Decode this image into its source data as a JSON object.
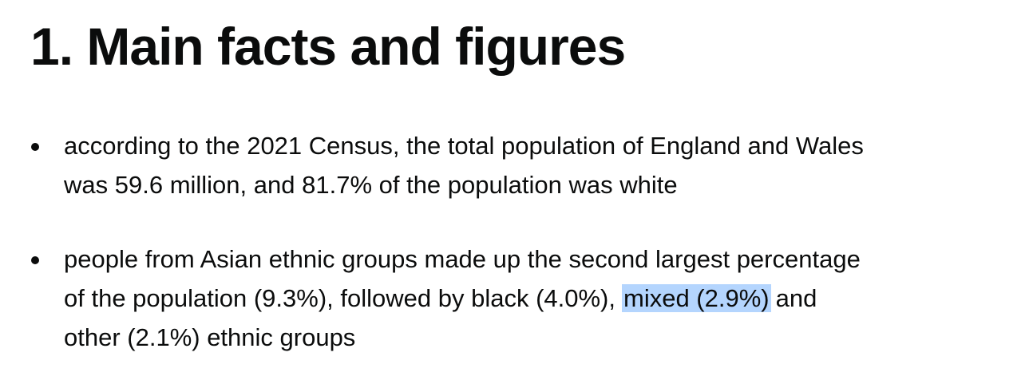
{
  "heading": "1. Main facts and figures",
  "items": [
    {
      "lines": [
        "according to the 2021 Census, the total population of England and Wales",
        "was 59.6 million, and 81.7% of the population was white"
      ]
    },
    {
      "lines": [
        "people from Asian ethnic groups made up the second largest percentage",
        {
          "before": "of the population (9.3%), followed by black (4.0%),",
          "selected": "mixed (2.9%)",
          "after": "and"
        },
        "other (2.1%) ethnic groups"
      ]
    }
  ]
}
